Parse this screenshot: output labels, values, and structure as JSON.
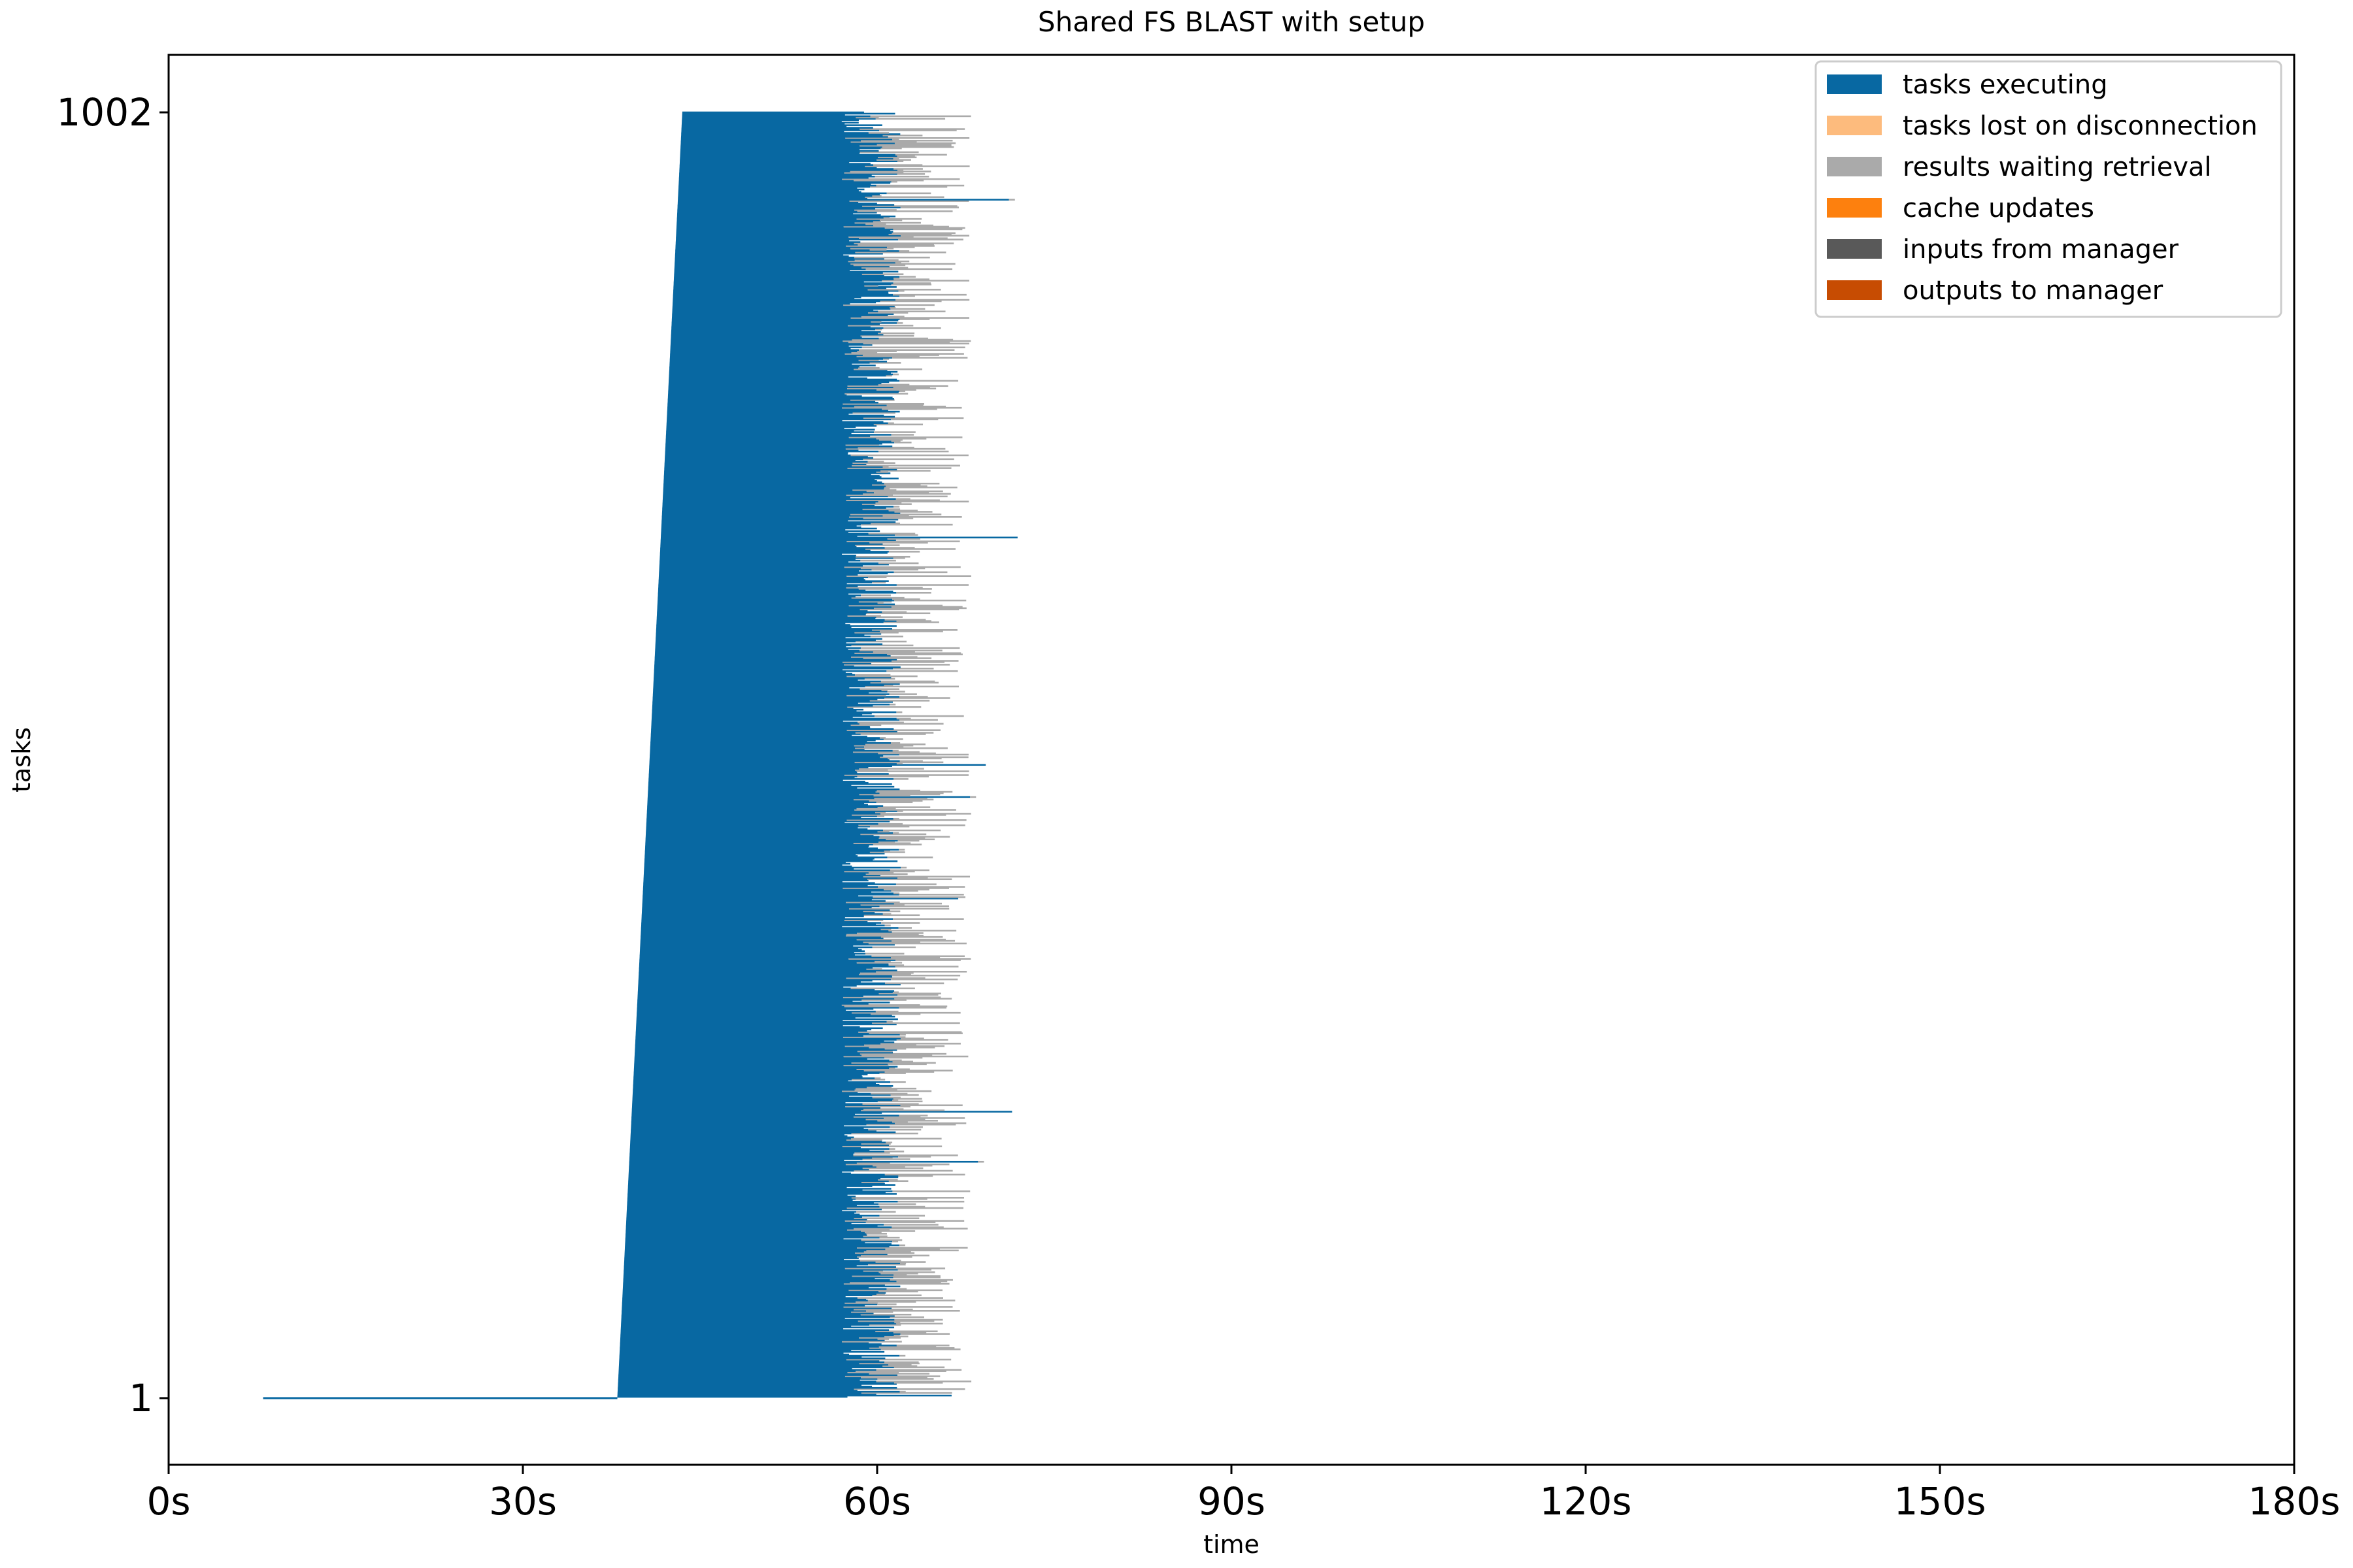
{
  "chart_data": {
    "type": "gantt",
    "title": "Shared FS BLAST with setup",
    "xlabel": "time",
    "ylabel": "tasks",
    "xlim": [
      0,
      180
    ],
    "ylim": [
      1,
      1002
    ],
    "xticks": [
      {
        "value": 0,
        "label": "0s"
      },
      {
        "value": 30,
        "label": "30s"
      },
      {
        "value": 60,
        "label": "60s"
      },
      {
        "value": 90,
        "label": "90s"
      },
      {
        "value": 120,
        "label": "120s"
      },
      {
        "value": 150,
        "label": "150s"
      },
      {
        "value": 180,
        "label": "180s"
      }
    ],
    "yticks": [
      {
        "value": 1002,
        "label": "1002"
      },
      {
        "value": 1,
        "label": "1"
      }
    ],
    "legend": {
      "placement": "top-right",
      "entries": [
        {
          "label": "tasks executing",
          "color": "#0868a2"
        },
        {
          "label": "tasks lost on disconnection",
          "color": "#fdbb7d"
        },
        {
          "label": "results waiting retrieval",
          "color": "#aaaaaa"
        },
        {
          "label": "cache updates",
          "color": "#fd800e"
        },
        {
          "label": "inputs from manager",
          "color": "#595959"
        },
        {
          "label": "outputs to manager",
          "color": "#c74c02"
        }
      ]
    },
    "series": [
      {
        "name": "tasks executing",
        "color": "#0868a2",
        "setup_task": {
          "task": 1,
          "start": 8,
          "end": 38
        },
        "first_task": {
          "task": 2,
          "start": 38
        },
        "last_task": {
          "task": 1002,
          "start": 43.5
        },
        "typical_end_range": [
          57,
          62
        ],
        "max_end": 72
      },
      {
        "name": "results waiting retrieval",
        "color": "#aaaaaa",
        "typical_end_range": [
          60,
          68
        ]
      }
    ]
  }
}
